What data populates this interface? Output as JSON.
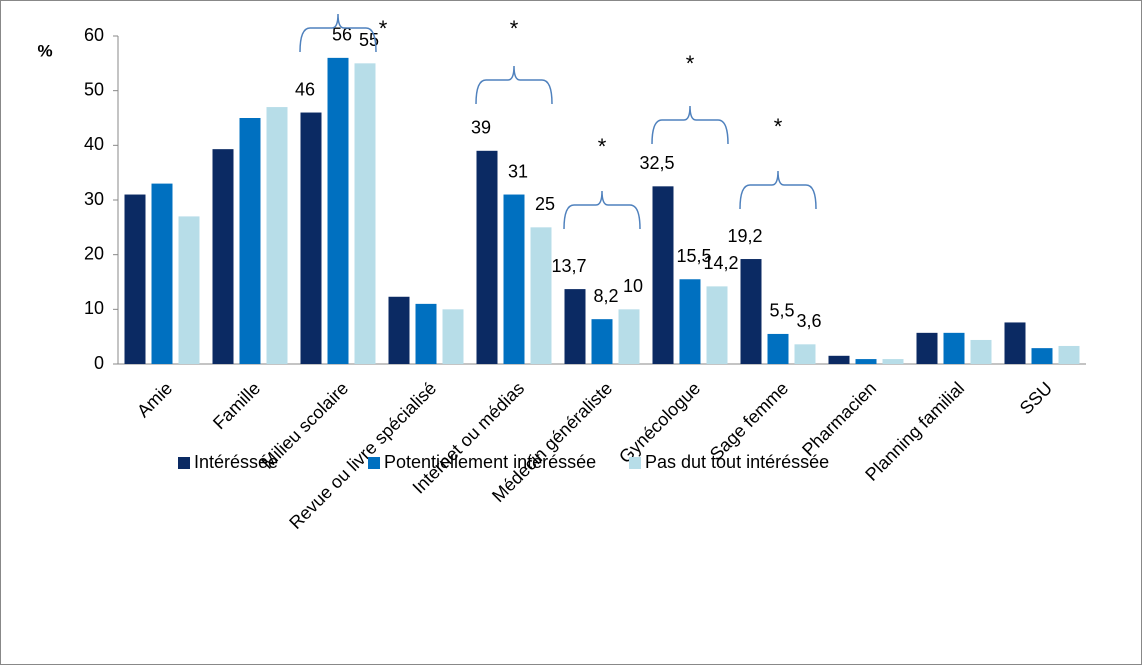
{
  "chart_data": {
    "type": "bar",
    "ylabel": "%",
    "categories": [
      "Amie",
      "Famille",
      "Milieu scolaire",
      "Revue ou livre spécialisé",
      "Internet ou médias",
      "Médecin généraliste",
      "Gynécologue",
      "Sage femme",
      "Pharmacien",
      "Planning familial",
      "SSU"
    ],
    "series": [
      {
        "name": "Intéréssée",
        "color": "#0b2a63",
        "values": [
          31,
          39.3,
          46,
          12.3,
          39,
          13.7,
          32.5,
          19.2,
          1.5,
          5.7,
          7.6
        ],
        "value_labels": [
          null,
          null,
          "46",
          null,
          "39",
          "13,7",
          "32,5",
          "19,2",
          null,
          null,
          null
        ]
      },
      {
        "name": "Potentiellement intéréssée",
        "color": "#0070c0",
        "values": [
          33,
          45,
          56,
          11,
          31,
          8.2,
          15.5,
          5.5,
          0.9,
          5.7,
          2.9
        ],
        "value_labels": [
          null,
          null,
          "56",
          null,
          "31",
          "8,2",
          "15,5",
          "5,5",
          null,
          null,
          null
        ]
      },
      {
        "name": "Pas dut tout intéréssée",
        "color": "#b7dde8",
        "values": [
          27,
          47,
          55,
          10,
          25,
          10,
          14.2,
          3.6,
          0.9,
          4.4,
          3.3
        ],
        "value_labels": [
          null,
          null,
          "55",
          null,
          "25",
          "10",
          "14,2",
          "3,6",
          null,
          null,
          null
        ]
      }
    ],
    "annotations": [
      {
        "text": "*",
        "category": "Milieu scolaire"
      },
      {
        "text": "*",
        "category": "Internet ou médias"
      },
      {
        "text": "*",
        "category": "Médecin généraliste"
      },
      {
        "text": "*",
        "category": "Gynécologue"
      },
      {
        "text": "*",
        "category": "Sage femme"
      }
    ],
    "ylim": [
      0,
      60
    ],
    "yticks": [
      0,
      10,
      20,
      30,
      40,
      50,
      60
    ],
    "legend": "bottom"
  }
}
